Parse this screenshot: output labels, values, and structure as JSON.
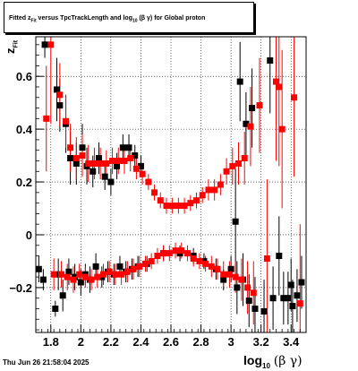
{
  "title": {
    "pre": "Fitted  z",
    "sub1": "Fit",
    "mid": "  versus TpcTrackLength and log",
    "sub2": "10",
    "post": " (β  γ) for Global proton"
  },
  "timestamp": "Thu Jun 26 21:58:04 2025",
  "axes": {
    "x_title": {
      "main": "log",
      "sub": "10",
      "sym": "(β γ)"
    },
    "y_title": {
      "main": "z",
      "sub": "Fit"
    }
  },
  "chart_data": {
    "type": "scatter",
    "title": "Fitted z_Fit versus TpcTrackLength and log10(β γ) for Global proton",
    "xlabel": "log10(β γ)",
    "ylabel": "z_Fit",
    "xlim": [
      1.7,
      3.5
    ],
    "ylim": [
      -0.37,
      0.75
    ],
    "grid": true,
    "x_ticks": [
      1.8,
      2.0,
      2.2,
      2.4,
      2.6,
      2.8,
      3.0,
      3.2,
      3.4
    ],
    "x_tick_labels": [
      "1.8",
      "2",
      "2.2",
      "2.4",
      "2.6",
      "2.8",
      "3",
      "3.2",
      "3.4"
    ],
    "y_ticks": [
      -0.2,
      0.0,
      0.2,
      0.4,
      0.6
    ],
    "y_tick_labels": [
      "−0.2",
      "0",
      "0.2",
      "0.4",
      "0.6"
    ],
    "colors": {
      "black": "#000000",
      "red": "#ff0000"
    },
    "series": [
      {
        "color": "#000000",
        "points": [
          {
            "x": 1.72,
            "y": -0.13,
            "err": 0.05
          },
          {
            "x": 1.75,
            "y": -0.17,
            "err": 0.04
          },
          {
            "x": 1.76,
            "y": 0.72,
            "err": 0.05
          },
          {
            "x": 1.83,
            "y": -0.28,
            "err": 0.03
          },
          {
            "x": 1.84,
            "y": 0.55,
            "err": 0.12
          },
          {
            "x": 1.85,
            "y": -0.15,
            "err": 0.06
          },
          {
            "x": 1.86,
            "y": 0.49,
            "err": 0.1
          },
          {
            "x": 1.88,
            "y": -0.23,
            "err": 0.06
          },
          {
            "x": 1.9,
            "y": 0.42,
            "err": 0.11
          },
          {
            "x": 1.92,
            "y": -0.14,
            "err": 0.05
          },
          {
            "x": 1.93,
            "y": 0.29,
            "err": 0.1
          },
          {
            "x": 1.96,
            "y": -0.16,
            "err": 0.05
          },
          {
            "x": 1.97,
            "y": 0.27,
            "err": 0.08
          },
          {
            "x": 2.0,
            "y": -0.18,
            "err": 0.05
          },
          {
            "x": 2.01,
            "y": 0.33,
            "err": 0.09
          },
          {
            "x": 2.03,
            "y": -0.15,
            "err": 0.04
          },
          {
            "x": 2.04,
            "y": 0.26,
            "err": 0.07
          },
          {
            "x": 2.06,
            "y": -0.17,
            "err": 0.05
          },
          {
            "x": 2.08,
            "y": 0.24,
            "err": 0.06
          },
          {
            "x": 2.1,
            "y": -0.12,
            "err": 0.05
          },
          {
            "x": 2.12,
            "y": 0.29,
            "err": 0.06
          },
          {
            "x": 2.14,
            "y": -0.16,
            "err": 0.04
          },
          {
            "x": 2.16,
            "y": 0.22,
            "err": 0.05
          },
          {
            "x": 2.18,
            "y": -0.14,
            "err": 0.04
          },
          {
            "x": 2.2,
            "y": 0.2,
            "err": 0.05
          },
          {
            "x": 2.22,
            "y": -0.15,
            "err": 0.04
          },
          {
            "x": 2.24,
            "y": 0.26,
            "err": 0.05
          },
          {
            "x": 2.26,
            "y": -0.12,
            "err": 0.04
          },
          {
            "x": 2.28,
            "y": 0.33,
            "err": 0.05
          },
          {
            "x": 2.3,
            "y": -0.14,
            "err": 0.04
          },
          {
            "x": 2.32,
            "y": 0.33,
            "err": 0.05
          },
          {
            "x": 2.34,
            "y": -0.13,
            "err": 0.04
          },
          {
            "x": 2.36,
            "y": 0.3,
            "err": 0.04
          },
          {
            "x": 2.38,
            "y": -0.12,
            "err": 0.04
          },
          {
            "x": 2.4,
            "y": 0.26,
            "err": 0.04
          },
          {
            "x": 2.44,
            "y": -0.11,
            "err": 0.03
          },
          {
            "x": 2.55,
            "y": -0.07,
            "err": 0.03
          },
          {
            "x": 2.66,
            "y": -0.07,
            "err": 0.03
          },
          {
            "x": 2.75,
            "y": -0.08,
            "err": 0.03
          },
          {
            "x": 2.82,
            "y": -0.1,
            "err": 0.03
          },
          {
            "x": 2.9,
            "y": -0.13,
            "err": 0.04
          },
          {
            "x": 2.95,
            "y": -0.17,
            "err": 0.04
          },
          {
            "x": 3.0,
            "y": -0.13,
            "err": 0.05
          },
          {
            "x": 3.03,
            "y": 0.05,
            "err": 0.2
          },
          {
            "x": 3.04,
            "y": -0.2,
            "err": 0.1
          },
          {
            "x": 3.06,
            "y": 0.58,
            "err": 0.15
          },
          {
            "x": 3.08,
            "y": -0.17,
            "err": 0.1
          },
          {
            "x": 3.1,
            "y": 0.42,
            "err": 0.12
          },
          {
            "x": 3.12,
            "y": -0.25,
            "err": 0.1
          },
          {
            "x": 3.14,
            "y": 0.48,
            "err": 0.15
          },
          {
            "x": 3.16,
            "y": -0.28,
            "err": 0.12
          },
          {
            "x": 3.22,
            "y": -0.29,
            "err": 0.12
          },
          {
            "x": 3.26,
            "y": 0.66,
            "err": 0.2
          },
          {
            "x": 3.28,
            "y": -0.24,
            "err": 0.12
          },
          {
            "x": 3.32,
            "y": -0.08,
            "err": 0.15
          },
          {
            "x": 3.35,
            "y": -0.24,
            "err": 0.1
          },
          {
            "x": 3.38,
            "y": -0.24,
            "err": 0.1
          },
          {
            "x": 3.4,
            "y": -0.19,
            "err": 0.1
          },
          {
            "x": 3.41,
            "y": -0.27,
            "err": 0.1
          },
          {
            "x": 3.44,
            "y": -0.23,
            "err": 0.1
          },
          {
            "x": 3.47,
            "y": -0.18,
            "err": 0.1
          }
        ]
      },
      {
        "color": "#ff0000",
        "points": [
          {
            "x": 1.77,
            "y": 0.44,
            "err": 0.2
          },
          {
            "x": 1.8,
            "y": 0.72,
            "err": 0.3
          },
          {
            "x": 1.82,
            "y": -0.15,
            "err": 0.06
          },
          {
            "x": 1.86,
            "y": 0.53,
            "err": 0.12
          },
          {
            "x": 1.87,
            "y": -0.15,
            "err": 0.05
          },
          {
            "x": 1.9,
            "y": 0.43,
            "err": 0.1
          },
          {
            "x": 1.91,
            "y": -0.16,
            "err": 0.05
          },
          {
            "x": 1.93,
            "y": 0.33,
            "err": 0.09
          },
          {
            "x": 1.95,
            "y": -0.17,
            "err": 0.05
          },
          {
            "x": 1.97,
            "y": 0.29,
            "err": 0.08
          },
          {
            "x": 1.99,
            "y": -0.15,
            "err": 0.04
          },
          {
            "x": 2.01,
            "y": 0.3,
            "err": 0.08
          },
          {
            "x": 2.03,
            "y": -0.16,
            "err": 0.04
          },
          {
            "x": 2.05,
            "y": 0.27,
            "err": 0.07
          },
          {
            "x": 2.07,
            "y": -0.17,
            "err": 0.04
          },
          {
            "x": 2.09,
            "y": 0.27,
            "err": 0.06
          },
          {
            "x": 2.11,
            "y": -0.16,
            "err": 0.04
          },
          {
            "x": 2.13,
            "y": 0.27,
            "err": 0.06
          },
          {
            "x": 2.15,
            "y": -0.15,
            "err": 0.04
          },
          {
            "x": 2.17,
            "y": 0.27,
            "err": 0.05
          },
          {
            "x": 2.19,
            "y": -0.14,
            "err": 0.04
          },
          {
            "x": 2.21,
            "y": 0.28,
            "err": 0.05
          },
          {
            "x": 2.23,
            "y": -0.15,
            "err": 0.04
          },
          {
            "x": 2.25,
            "y": 0.28,
            "err": 0.05
          },
          {
            "x": 2.27,
            "y": -0.15,
            "err": 0.04
          },
          {
            "x": 2.29,
            "y": 0.28,
            "err": 0.05
          },
          {
            "x": 2.31,
            "y": -0.14,
            "err": 0.04
          },
          {
            "x": 2.33,
            "y": 0.29,
            "err": 0.05
          },
          {
            "x": 2.35,
            "y": -0.13,
            "err": 0.04
          },
          {
            "x": 2.37,
            "y": 0.25,
            "err": 0.04
          },
          {
            "x": 2.39,
            "y": -0.12,
            "err": 0.04
          },
          {
            "x": 2.41,
            "y": 0.23,
            "err": 0.04
          },
          {
            "x": 2.43,
            "y": -0.11,
            "err": 0.03
          },
          {
            "x": 2.45,
            "y": 0.2,
            "err": 0.03
          },
          {
            "x": 2.47,
            "y": -0.1,
            "err": 0.03
          },
          {
            "x": 2.49,
            "y": 0.16,
            "err": 0.03
          },
          {
            "x": 2.51,
            "y": -0.08,
            "err": 0.03
          },
          {
            "x": 2.53,
            "y": 0.13,
            "err": 0.03
          },
          {
            "x": 2.55,
            "y": -0.07,
            "err": 0.03
          },
          {
            "x": 2.57,
            "y": 0.11,
            "err": 0.03
          },
          {
            "x": 2.59,
            "y": -0.07,
            "err": 0.03
          },
          {
            "x": 2.61,
            "y": 0.11,
            "err": 0.03
          },
          {
            "x": 2.63,
            "y": -0.06,
            "err": 0.03
          },
          {
            "x": 2.65,
            "y": 0.11,
            "err": 0.03
          },
          {
            "x": 2.67,
            "y": -0.06,
            "err": 0.03
          },
          {
            "x": 2.69,
            "y": 0.11,
            "err": 0.03
          },
          {
            "x": 2.71,
            "y": -0.07,
            "err": 0.03
          },
          {
            "x": 2.73,
            "y": 0.12,
            "err": 0.03
          },
          {
            "x": 2.75,
            "y": -0.09,
            "err": 0.03
          },
          {
            "x": 2.77,
            "y": 0.13,
            "err": 0.03
          },
          {
            "x": 2.79,
            "y": -0.1,
            "err": 0.03
          },
          {
            "x": 2.81,
            "y": 0.15,
            "err": 0.03
          },
          {
            "x": 2.83,
            "y": -0.11,
            "err": 0.03
          },
          {
            "x": 2.85,
            "y": 0.17,
            "err": 0.04
          },
          {
            "x": 2.87,
            "y": -0.12,
            "err": 0.04
          },
          {
            "x": 2.89,
            "y": 0.17,
            "err": 0.04
          },
          {
            "x": 2.91,
            "y": -0.13,
            "err": 0.04
          },
          {
            "x": 2.93,
            "y": 0.19,
            "err": 0.04
          },
          {
            "x": 2.95,
            "y": -0.15,
            "err": 0.05
          },
          {
            "x": 2.97,
            "y": 0.24,
            "err": 0.05
          },
          {
            "x": 2.99,
            "y": -0.15,
            "err": 0.05
          },
          {
            "x": 3.01,
            "y": 0.26,
            "err": 0.07
          },
          {
            "x": 3.03,
            "y": -0.16,
            "err": 0.06
          },
          {
            "x": 3.05,
            "y": 0.27,
            "err": 0.08
          },
          {
            "x": 3.07,
            "y": -0.17,
            "err": 0.08
          },
          {
            "x": 3.09,
            "y": 0.29,
            "err": 0.1
          },
          {
            "x": 3.11,
            "y": -0.2,
            "err": 0.1
          },
          {
            "x": 3.13,
            "y": 0.41,
            "err": 0.15
          },
          {
            "x": 3.15,
            "y": -0.22,
            "err": 0.12
          },
          {
            "x": 3.19,
            "y": 0.49,
            "err": 0.18
          },
          {
            "x": 3.24,
            "y": -0.09,
            "err": 0.3
          },
          {
            "x": 3.3,
            "y": 0.58,
            "err": 0.3
          },
          {
            "x": 3.32,
            "y": 0.56,
            "err": 0.3
          },
          {
            "x": 3.34,
            "y": 0.4,
            "err": 0.3
          },
          {
            "x": 3.42,
            "y": 0.52,
            "err": 0.3
          },
          {
            "x": 3.46,
            "y": -0.26,
            "err": 0.3
          }
        ]
      }
    ]
  }
}
